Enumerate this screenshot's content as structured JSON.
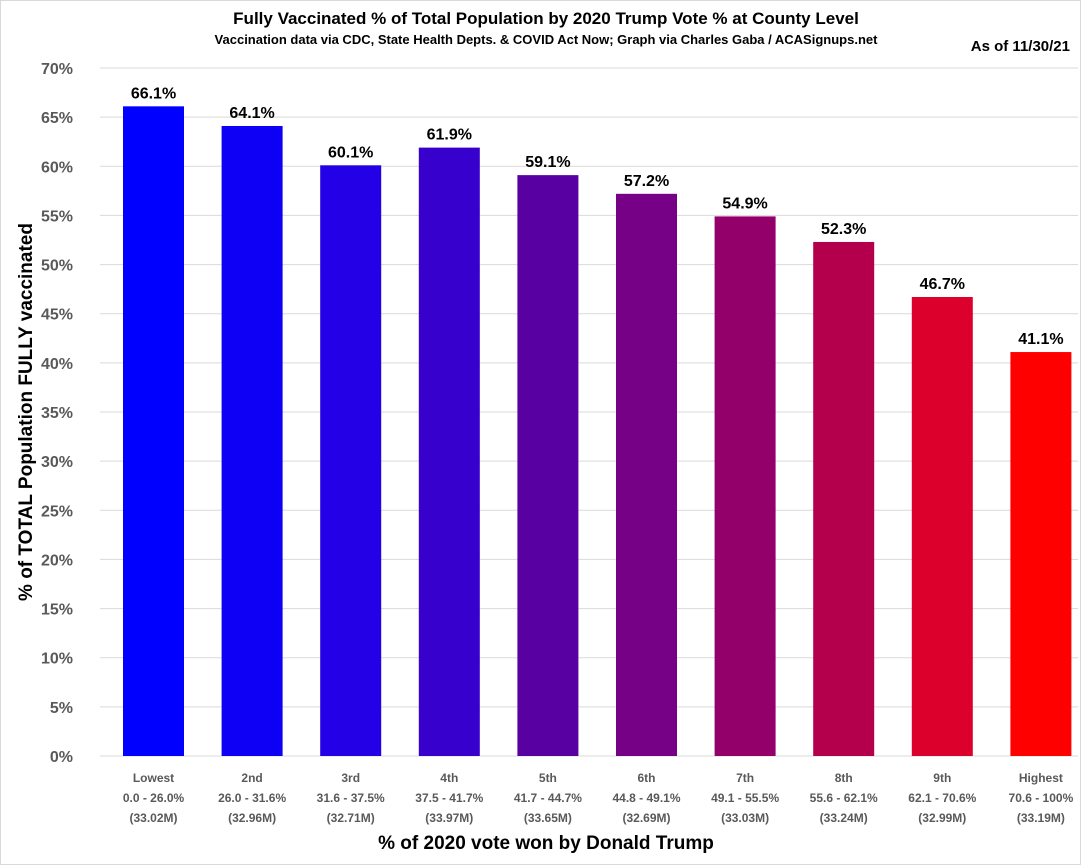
{
  "chart_data": {
    "type": "bar",
    "title": "Fully Vaccinated % of Total Population by 2020 Trump Vote % at County Level",
    "subtitle": "Vaccination data via CDC, State Health Depts. & COVID Act Now; Graph via Charles Gaba / ACASignups.net",
    "annotation": "As of 11/30/21",
    "xlabel": "% of 2020 vote won by Donald Trump",
    "ylabel": "% of TOTAL Population FULLY vaccinated",
    "ylim": [
      0,
      70
    ],
    "yticks": [
      "0%",
      "5%",
      "10%",
      "15%",
      "20%",
      "25%",
      "30%",
      "35%",
      "40%",
      "45%",
      "50%",
      "55%",
      "60%",
      "65%",
      "70%"
    ],
    "grid": true,
    "categories": [
      {
        "rank": "Lowest",
        "range": "0.0 - 26.0%",
        "pop": "(33.02M)"
      },
      {
        "rank": "2nd",
        "range": "26.0 - 31.6%",
        "pop": "(32.96M)"
      },
      {
        "rank": "3rd",
        "range": "31.6 - 37.5%",
        "pop": "(32.71M)"
      },
      {
        "rank": "4th",
        "range": "37.5 - 41.7%",
        "pop": "(33.97M)"
      },
      {
        "rank": "5th",
        "range": "41.7 - 44.7%",
        "pop": "(33.65M)"
      },
      {
        "rank": "6th",
        "range": "44.8 - 49.1%",
        "pop": "(32.69M)"
      },
      {
        "rank": "7th",
        "range": "49.1 - 55.5%",
        "pop": "(33.03M)"
      },
      {
        "rank": "8th",
        "range": "55.6 - 62.1%",
        "pop": "(33.24M)"
      },
      {
        "rank": "9th",
        "range": "62.1 - 70.6%",
        "pop": "(32.99M)"
      },
      {
        "rank": "Highest",
        "range": "70.6 - 100%",
        "pop": "(33.19M)"
      }
    ],
    "values": [
      66.1,
      64.1,
      60.1,
      61.9,
      59.1,
      57.2,
      54.9,
      52.3,
      46.7,
      41.1
    ],
    "data_labels": [
      "66.1%",
      "64.1%",
      "60.1%",
      "61.9%",
      "59.1%",
      "57.2%",
      "54.9%",
      "52.3%",
      "46.7%",
      "41.1%"
    ],
    "colors": [
      "#0000FF",
      "#0E00F5",
      "#2400E6",
      "#3800CC",
      "#5800A2",
      "#760086",
      "#94006A",
      "#B4004C",
      "#DC002C",
      "#FF0000"
    ]
  }
}
